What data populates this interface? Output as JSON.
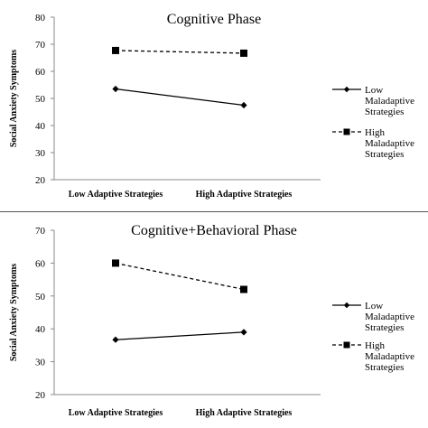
{
  "chart_data": [
    {
      "type": "line",
      "title": "Cognitive Phase",
      "xlabel": "",
      "ylabel": "Social Anxiety Symptoms",
      "categories": [
        "Low Adaptive Strategies",
        "High Adaptive Strategies"
      ],
      "ylim": [
        20,
        80
      ],
      "yticks": [
        20,
        30,
        40,
        50,
        60,
        70,
        80
      ],
      "grid": false,
      "legend_position": "right",
      "series": [
        {
          "name": "Low Maladaptive Strategies",
          "legend_lines": [
            "Low",
            "Maladaptive",
            "Strategies"
          ],
          "values": [
            53.5,
            47.5
          ],
          "line_style": "solid",
          "marker": "diamond",
          "color": "#000000"
        },
        {
          "name": "High Maladaptive Strategies",
          "legend_lines": [
            "High",
            "Maladaptive",
            "Strategies"
          ],
          "values": [
            67.7,
            66.7
          ],
          "line_style": "dashed",
          "marker": "square",
          "color": "#000000"
        }
      ]
    },
    {
      "type": "line",
      "title": "Cognitive+Behavioral Phase",
      "xlabel": "",
      "ylabel": "Social Anxiety Symptoms",
      "categories": [
        "Low Adaptive Strategies",
        "High Adaptive Strategies"
      ],
      "ylim": [
        20,
        70
      ],
      "yticks": [
        20,
        30,
        40,
        50,
        60,
        70
      ],
      "grid": false,
      "legend_position": "right",
      "series": [
        {
          "name": "Low Maladaptive Strategies",
          "legend_lines": [
            "Low",
            "Maladaptive",
            "Strategies"
          ],
          "values": [
            36.7,
            39.0
          ],
          "line_style": "solid",
          "marker": "diamond",
          "color": "#000000"
        },
        {
          "name": "High Maladaptive Strategies",
          "legend_lines": [
            "High",
            "Maladaptive",
            "Strategies"
          ],
          "values": [
            60.0,
            52.0
          ],
          "line_style": "dashed",
          "marker": "square",
          "color": "#000000"
        }
      ]
    }
  ]
}
